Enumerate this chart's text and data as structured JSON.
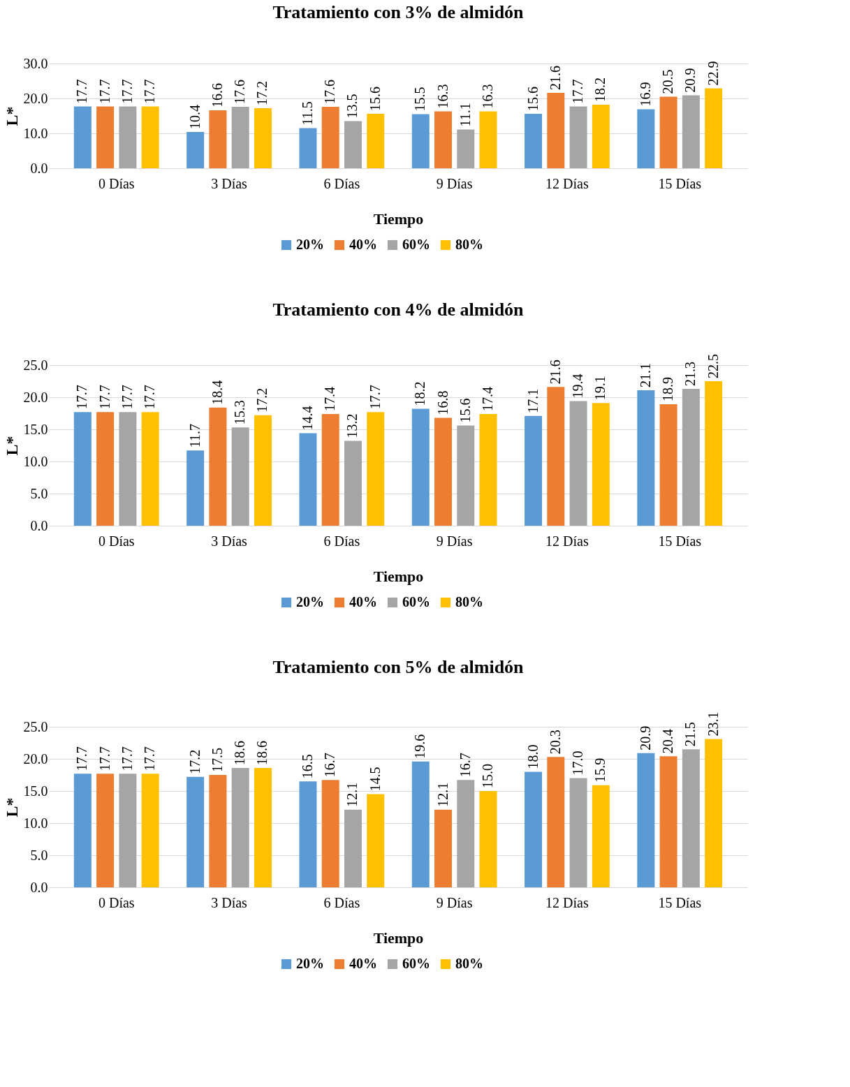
{
  "chart_data": [
    {
      "type": "bar",
      "title": "Tratamiento con 3% de almidón",
      "xlabel": "Tiempo",
      "ylabel": "L*",
      "categories": [
        "0 Días",
        "3 Días",
        "6 Días",
        "9 Días",
        "12 Días",
        "15 Días"
      ],
      "series": [
        {
          "name": "20%",
          "color": "#5b9bd5",
          "values": [
            17.7,
            10.4,
            11.5,
            15.5,
            15.6,
            16.9
          ]
        },
        {
          "name": "40%",
          "color": "#ed7d31",
          "values": [
            17.7,
            16.6,
            17.6,
            16.3,
            21.6,
            20.5
          ]
        },
        {
          "name": "60%",
          "color": "#a5a5a5",
          "values": [
            17.7,
            17.6,
            13.5,
            11.1,
            17.7,
            20.9
          ]
        },
        {
          "name": "80%",
          "color": "#ffc000",
          "values": [
            17.7,
            17.2,
            15.6,
            16.3,
            18.2,
            22.9
          ]
        }
      ],
      "ylim": [
        0,
        30
      ],
      "yticks": [
        {
          "value": 0,
          "label": "0.0"
        },
        {
          "value": 10,
          "label": "10.0"
        },
        {
          "value": 20,
          "label": "20.0"
        },
        {
          "value": 30,
          "label": "30.0"
        }
      ],
      "grid": "y",
      "legend": "bottom",
      "data_labels": true
    },
    {
      "type": "bar",
      "title": "Tratamiento con 4% de almidón",
      "xlabel": "Tiempo",
      "ylabel": "L*",
      "categories": [
        "0 Días",
        "3 Días",
        "6 Días",
        "9 Días",
        "12 Días",
        "15 Días"
      ],
      "series": [
        {
          "name": "20%",
          "color": "#5b9bd5",
          "values": [
            17.7,
            11.7,
            14.4,
            18.2,
            17.1,
            21.1
          ]
        },
        {
          "name": "40%",
          "color": "#ed7d31",
          "values": [
            17.7,
            18.4,
            17.4,
            16.8,
            21.6,
            18.9
          ]
        },
        {
          "name": "60%",
          "color": "#a5a5a5",
          "values": [
            17.7,
            15.3,
            13.2,
            15.6,
            19.4,
            21.3
          ]
        },
        {
          "name": "80%",
          "color": "#ffc000",
          "values": [
            17.7,
            17.2,
            17.7,
            17.4,
            19.1,
            22.5
          ]
        }
      ],
      "ylim": [
        0,
        25
      ],
      "yticks": [
        {
          "value": 0,
          "label": "0.0"
        },
        {
          "value": 5,
          "label": "5.0"
        },
        {
          "value": 10,
          "label": "10.0"
        },
        {
          "value": 15,
          "label": "15.0"
        },
        {
          "value": 20,
          "label": "20.0"
        },
        {
          "value": 25,
          "label": "25.0"
        }
      ],
      "grid": "y",
      "legend": "bottom",
      "data_labels": true
    },
    {
      "type": "bar",
      "title": "Tratamiento con 5% de almidón",
      "xlabel": "Tiempo",
      "ylabel": "L*",
      "categories": [
        "0 Días",
        "3 Días",
        "6 Días",
        "9 Días",
        "12 Días",
        "15 Días"
      ],
      "series": [
        {
          "name": "20%",
          "color": "#5b9bd5",
          "values": [
            17.7,
            17.2,
            16.5,
            19.6,
            18.0,
            20.9
          ],
          "value_labels": [
            "17.7",
            "17.2",
            "16.5",
            "19.6",
            "18.0",
            "20.9"
          ]
        },
        {
          "name": "40%",
          "color": "#ed7d31",
          "values": [
            17.7,
            17.5,
            16.7,
            12.1,
            20.3,
            20.4
          ],
          "value_labels": [
            "17.7",
            "17.5",
            "16.7",
            "12.1",
            "20.3",
            "20.4"
          ]
        },
        {
          "name": "60%",
          "color": "#a5a5a5",
          "values": [
            17.7,
            18.6,
            12.1,
            16.7,
            17.0,
            21.5
          ],
          "value_labels": [
            "17.7",
            "18.6",
            "12.1",
            "16.7",
            "17.0",
            "21.5"
          ]
        },
        {
          "name": "80%",
          "color": "#ffc000",
          "values": [
            17.7,
            18.6,
            14.5,
            15.0,
            15.9,
            23.1
          ],
          "value_labels": [
            "17.7",
            "18.6",
            "14.5",
            "15.0",
            "15.9",
            "23.1"
          ]
        }
      ],
      "ylim": [
        0,
        25
      ],
      "yticks": [
        {
          "value": 0,
          "label": "0.0"
        },
        {
          "value": 5,
          "label": "5.0"
        },
        {
          "value": 10,
          "label": "10.0"
        },
        {
          "value": 15,
          "label": "15.0"
        },
        {
          "value": 20,
          "label": "20.0"
        },
        {
          "value": 25,
          "label": "25.0"
        }
      ],
      "grid": "y",
      "legend": "bottom"
    }
  ]
}
